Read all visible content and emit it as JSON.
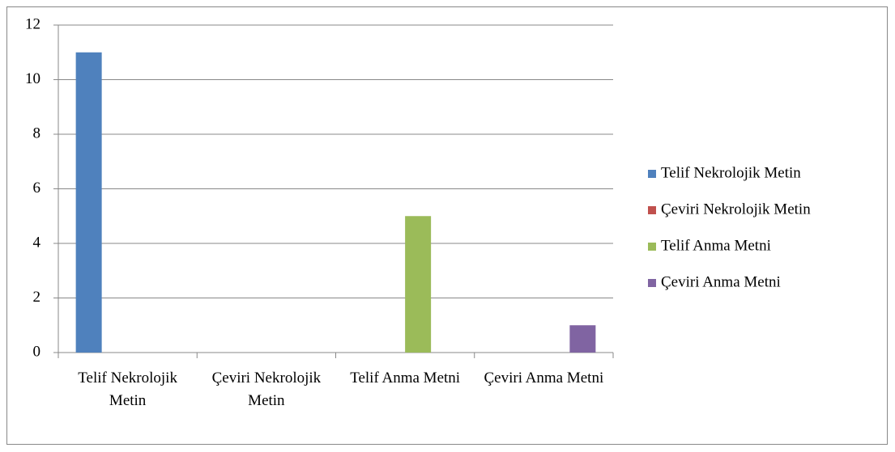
{
  "chart_data": {
    "type": "bar",
    "categories": [
      "Telif Nekrolojik Metin",
      "Çeviri Nekrolojik Metin",
      "Telif Anma Metni",
      "Çeviri Anma Metni"
    ],
    "series": [
      {
        "name": "Telif Nekrolojik Metin",
        "color": "#4f81bd",
        "values": [
          11,
          0,
          0,
          0
        ]
      },
      {
        "name": "Çeviri Nekrolojik Metin",
        "color": "#c0504d",
        "values": [
          0,
          0,
          0,
          0
        ]
      },
      {
        "name": "Telif Anma Metni",
        "color": "#9bbb59",
        "values": [
          0,
          0,
          5,
          0
        ]
      },
      {
        "name": "Çeviri Anma Metni",
        "color": "#8064a2",
        "values": [
          0,
          0,
          0,
          1
        ]
      }
    ],
    "ylim": [
      0,
      12
    ],
    "yticks": [
      0,
      2,
      4,
      6,
      8,
      10,
      12
    ],
    "grid": true,
    "legend": "right"
  }
}
